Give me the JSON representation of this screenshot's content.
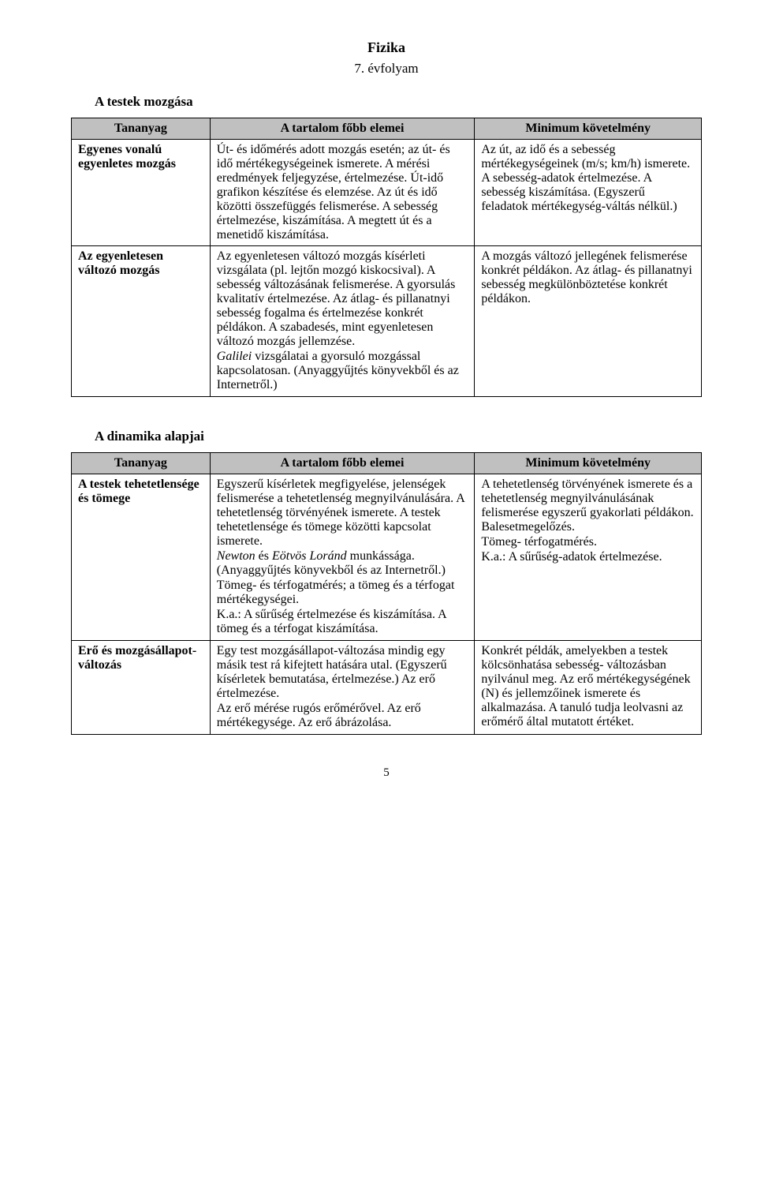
{
  "title": "Fizika",
  "subtitle": "7. évfolyam",
  "section1": {
    "heading": "A testek mozgása",
    "headers": [
      "Tananyag",
      "A tartalom főbb elemei",
      "Minimum követelmény"
    ],
    "rows": [
      {
        "c1": "Egyenes vonalú egyenletes mozgás",
        "c2": "Út- és időmérés adott mozgás esetén; az út- és idő mértékegységeinek ismerete. A mérési eredmények feljegyzése, értelmezése. Út-idő grafikon készítése és elemzése. Az út és idő közötti összefüggés felismerése. A sebesség értelmezése, kiszámítása. A megtett út és a menetidő kiszámítása.",
        "c3": "Az út, az idő és a sebesség mértékegységeinek (m/s; km/h) ismerete. A sebesség-adatok értelmezése. A sebesség kiszámítása. (Egyszerű feladatok mértékegység-váltás nélkül.)"
      },
      {
        "c1": "Az egyenletesen változó mozgás",
        "c2a": "Az egyenletesen változó mozgás kísérleti vizsgálata (pl. lejtőn mozgó kiskocsival). A sebesség változásának felismerése. A gyorsulás kvalitatív értelmezése. Az átlag- és pillanatnyi sebesség fogalma és értelmezése konkrét példákon. A szabadesés, mint egyenletesen változó mozgás jellemzése.",
        "c2b_prefix": "Galilei",
        "c2b_rest": " vizsgálatai a gyorsuló mozgással kapcsolatosan. (Anyaggyűjtés könyvekből és az Internetről.)",
        "c3": "A mozgás változó jellegének felismerése konkrét példákon. Az átlag- és pillanatnyi sebesség megkülönböztetése konkrét példákon."
      }
    ]
  },
  "section2": {
    "heading": "A dinamika alapjai",
    "headers": [
      "Tananyag",
      "A tartalom főbb elemei",
      "Minimum követelmény"
    ],
    "rows": [
      {
        "c1": "A testek tehetetlensége és tömege",
        "c2a": "Egyszerű kísérletek megfigyelése, jelenségek felismerése a tehetetlenség megnyilvánulására. A tehetetlenség törvényének ismerete. A testek tehetetlensége és tömege közötti kapcsolat ismerete.",
        "c2b_prefix": "Newton",
        "c2b_mid": " és ",
        "c2b_prefix2": "Eötvös Loránd",
        "c2b_rest": " munkássága. (Anyaggyűjtés könyvekből és az Internetről.)",
        "c2c": "Tömeg- és térfogatmérés; a tömeg és a térfogat mértékegységei.",
        "c2d": "K.a.: A sűrűség értelmezése és kiszámítása. A tömeg és a térfogat kiszámítása.",
        "c3a": "A tehetetlenség törvényének ismerete és a tehetetlenség megnyilvánulásának felismerése egyszerű gyakorlati példákon. Balesetmegelőzés.",
        "c3b": "Tömeg- térfogatmérés.",
        "c3c": "K.a.: A sűrűség-adatok értelmezése."
      },
      {
        "c1": "Erő és mozgásállapot-változás",
        "c2a": "Egy test mozgásállapot-változása mindig egy másik test rá kifejtett hatására utal. (Egyszerű kísérletek bemutatása, értelmezése.) Az erő értelmezése.",
        "c2b": "Az erő mérése rugós erőmérővel. Az erő mértékegysége. Az erő ábrázolása.",
        "c3": "Konkrét példák, amelyekben a testek  kölcsönhatása sebesség- változásban nyilvánul meg. Az erő mértékegységének (N) és jellemzőinek ismerete és alkalmazása. A tanuló tudja leolvasni az erőmérő által mutatott értéket."
      }
    ]
  },
  "pagenum": "5"
}
